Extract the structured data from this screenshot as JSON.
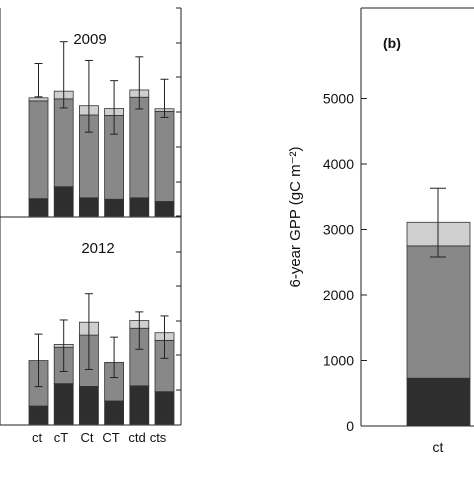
{
  "chart_data": [
    {
      "type": "bar",
      "stacked": true,
      "title": "2009",
      "categories": [
        "ct",
        "cT",
        "Ct",
        "CT",
        "ctd",
        "cts"
      ],
      "series": [
        {
          "values": [
            860,
            1450,
            900,
            830,
            900,
            720
          ],
          "color": "#2e2e2e"
        },
        {
          "values": [
            4840,
            4350,
            4100,
            4150,
            4980,
            4460
          ],
          "color": "#888888"
        },
        {
          "values": [
            150,
            380,
            460,
            340,
            360,
            130
          ],
          "color": "#cfcfcf"
        }
      ],
      "error_bars": [
        {
          "upper": 7550,
          "lower": 5900
        },
        {
          "upper": 8630,
          "lower": 5350
        },
        {
          "upper": 7700,
          "lower": 4150
        },
        {
          "upper": 6700,
          "lower": 4050
        },
        {
          "upper": 7880,
          "lower": 5300
        },
        {
          "upper": 6770,
          "lower": 4880
        }
      ],
      "grid": false
    },
    {
      "type": "bar",
      "stacked": true,
      "title": "2012",
      "categories": [
        "ct",
        "cT",
        "Ct",
        "CT",
        "ctd",
        "cts"
      ],
      "series": [
        {
          "values": [
            890,
            2000,
            1860,
            1140,
            1890,
            1600
          ],
          "color": "#2e2e2e"
        },
        {
          "values": [
            2250,
            1800,
            2540,
            1910,
            2850,
            2540
          ],
          "color": "#888888"
        },
        {
          "values": [
            0,
            140,
            640,
            0,
            380,
            380
          ],
          "color": "#cfcfcf"
        }
      ],
      "error_bars": [
        {
          "upper": 4450,
          "lower": 1850
        },
        {
          "upper": 5150,
          "lower": 2600
        },
        {
          "upper": 6450,
          "lower": 2700
        },
        {
          "upper": 4300,
          "lower": 2300
        },
        {
          "upper": 5550,
          "lower": 3700
        },
        {
          "upper": 5350,
          "lower": 3250
        }
      ],
      "grid": false
    },
    {
      "type": "bar",
      "stacked": true,
      "panel_label": "(b)",
      "ylabel": "6-year GPP (gC m⁻²)",
      "categories": [
        "ct"
      ],
      "yticks": [
        "0",
        "1000",
        "2000",
        "3000",
        "4000",
        "5000"
      ],
      "ylim": [
        0,
        6500
      ],
      "series": [
        {
          "values": [
            730
          ],
          "color": "#2e2e2e"
        },
        {
          "values": [
            2020
          ],
          "color": "#888888"
        },
        {
          "values": [
            360
          ],
          "color": "#cfcfcf"
        }
      ],
      "error_bars": [
        {
          "upper": 3630,
          "lower": 2580
        }
      ],
      "grid": false
    }
  ]
}
